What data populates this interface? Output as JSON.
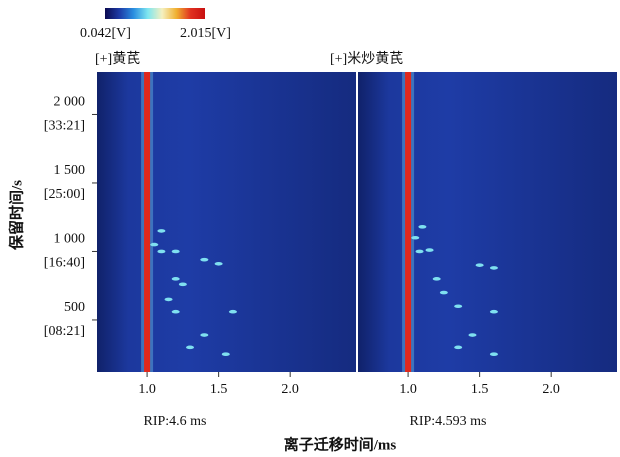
{
  "figure": {
    "colorbar_min": "0.042[V]",
    "colorbar_max": "2.015[V]",
    "colormap": [
      "#0a0a50",
      "#1d3aa6",
      "#2a8ee0",
      "#7fe6f0",
      "#f5f0c0",
      "#f0b030",
      "#e03020",
      "#c81010"
    ],
    "xlabel": "离子迁移时间/ms",
    "ylabel": "保留时间/s",
    "background": "#1e3ca6",
    "rip_color": "#e0281c",
    "spot_color": "#7fe0f0"
  },
  "chart_data": [
    {
      "type": "heatmap",
      "title": "[+]黄芪",
      "rip_label": "RIP:4.6 ms",
      "xlim": [
        0.65,
        2.46
      ],
      "xticks": [
        {
          "value": 1,
          "label": "1.0"
        },
        1.5,
        {
          "value": 2,
          "label": "2.0"
        }
      ],
      "ylim": [
        120,
        2310
      ],
      "yticks": [
        {
          "value": 500,
          "label": "500"
        },
        {
          "value": 1000,
          "label": "1 000"
        },
        {
          "value": 1500,
          "label": "1 500"
        },
        {
          "value": 2000,
          "label": "2 000"
        }
      ],
      "ytick_times": [
        "[08:21]",
        "[16:40]",
        "[25:00]",
        "[33:21]"
      ],
      "rip_x": 1,
      "spots": {
        "x": [
          1.1,
          1.2,
          1.05,
          1.1,
          1.4,
          1.5,
          1.2,
          1.25,
          1.6,
          1.2,
          1.4,
          1.55,
          1.3,
          1.15
        ],
        "y": [
          1000,
          1000,
          1050,
          1150,
          940,
          910,
          800,
          760,
          560,
          560,
          390,
          250,
          300,
          650
        ]
      }
    },
    {
      "type": "heatmap",
      "title": "[+]米炒黄芪",
      "rip_label": "RIP:4.593 ms",
      "xlim": [
        0.65,
        2.46
      ],
      "xticks": [
        {
          "value": 1,
          "label": "1.0"
        },
        1.5,
        {
          "value": 2,
          "label": "2.0"
        }
      ],
      "ylim": [
        120,
        2310
      ],
      "rip_x": 1,
      "spots": {
        "x": [
          1.08,
          1.15,
          1.1,
          1.5,
          1.6,
          1.2,
          1.35,
          1.6,
          1.45,
          1.6,
          1.35,
          1.05,
          1.25
        ],
        "y": [
          1000,
          1010,
          1180,
          900,
          880,
          800,
          600,
          560,
          390,
          250,
          300,
          1100,
          700
        ]
      }
    }
  ]
}
